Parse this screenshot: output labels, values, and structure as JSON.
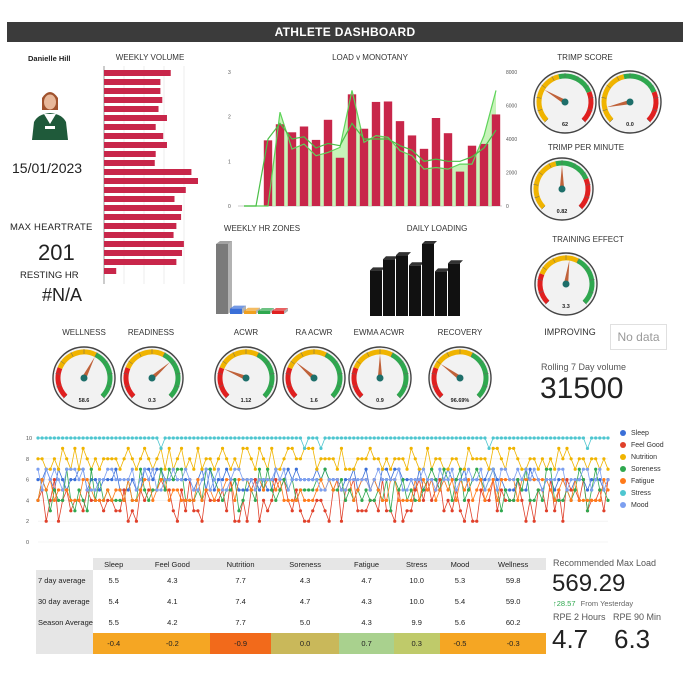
{
  "header": {
    "title": "ATHLETE DASHBOARD"
  },
  "athlete": {
    "name": "Danielle Hill",
    "date": "15/01/2023",
    "max_hr_label": "MAX HEARTRATE",
    "max_hr_value": "201",
    "resting_hr_label": "RESTING HR",
    "resting_hr_value": "#N/A"
  },
  "weekly_volume": {
    "title": "WEEKLY VOLUME",
    "values": [
      0.71,
      0.6,
      0.6,
      0.62,
      0.58,
      0.67,
      0.55,
      0.63,
      0.67,
      0.55,
      0.54,
      0.93,
      1.0,
      0.87,
      0.75,
      0.83,
      0.82,
      0.77,
      0.74,
      0.85,
      0.83,
      0.77,
      0.13
    ]
  },
  "load_monotany": {
    "title": "LOAD v MONOTANY",
    "left_ticks": [
      "3",
      "2",
      "1",
      "0"
    ],
    "right_ticks": [
      "8000",
      "6000",
      "4000",
      "2000",
      "0"
    ],
    "chart_data": {
      "type": "bar",
      "title": "LOAD v MONOTANY",
      "ylim": [
        0,
        3
      ],
      "y2lim": [
        0,
        8000
      ],
      "bars": [
        0,
        0,
        1.47,
        1.83,
        1.65,
        1.78,
        1.48,
        1.93,
        1.08,
        2.5,
        1.73,
        2.33,
        2.34,
        1.9,
        1.58,
        1.28,
        1.97,
        1.63,
        0.77,
        1.35,
        1.39,
        2.05
      ],
      "monotony_line": [
        0,
        0,
        0,
        5600,
        3400,
        3700,
        3000,
        3200,
        3500,
        6900,
        3800,
        4200,
        4100,
        3300,
        3000,
        2200,
        2300,
        2200,
        2500,
        2500,
        4200,
        6900
      ],
      "load_line": [
        0,
        0,
        1.5,
        1.85,
        1.5,
        1.55,
        1.3,
        1.4,
        1.35,
        1.85,
        1.5,
        1.5,
        1.5,
        1.35,
        1.25,
        1.0,
        1.05,
        1.0,
        1.0,
        1.1,
        1.3,
        1.7
      ]
    }
  },
  "hr_zones": {
    "title": "WEEKLY HR ZONES",
    "chart_data": {
      "type": "bar",
      "values": [
        65,
        5,
        3,
        2,
        1
      ],
      "colors": [
        "#7a7a7a",
        "#3a6fd8",
        "#f0a020",
        "#2fa84f",
        "#e02020"
      ]
    }
  },
  "daily_loading": {
    "title": "DAILY LOADING",
    "chart_data": {
      "type": "bar",
      "values": [
        45,
        56,
        60,
        50,
        71,
        44,
        52
      ]
    }
  },
  "gauges": {
    "trimp_score": {
      "title": "TRIMP SCORE",
      "value": "62",
      "fraction": 0.28,
      "type": "low"
    },
    "trimp_score_2": {
      "value": "0.0",
      "fraction": 0.12,
      "type": "low"
    },
    "trimp_per_minute": {
      "title": "TRIMP PER MINUTE",
      "value": "0.82",
      "fraction": 0.5,
      "type": "low"
    },
    "training_effect": {
      "title": "TRAINING EFFECT",
      "value": "3.3",
      "fraction": 0.53,
      "type": "high"
    },
    "training_effect_text": "IMPROVING",
    "no_data": "No data",
    "wellness": {
      "title": "WELLNESS",
      "value": "58.6",
      "fraction": 0.6,
      "type": "high"
    },
    "readiness": {
      "title": "READINESS",
      "value": "0.3",
      "fraction": 0.68,
      "type": "high"
    },
    "acwr": {
      "title": "ACWR",
      "value": "1.12",
      "fraction": 0.25,
      "type": "high"
    },
    "ra_acwr": {
      "title": "RA ACWR",
      "value": "1.6",
      "fraction": 0.32,
      "type": "high"
    },
    "ewma_acwr": {
      "title": "EWMA ACWR",
      "value": "0.9",
      "fraction": 0.5,
      "type": "high"
    },
    "recovery": {
      "title": "RECOVERY",
      "value": "96.69%",
      "fraction": 0.3,
      "type": "high"
    }
  },
  "rolling": {
    "label": "Rolling 7 Day volume",
    "value": "31500"
  },
  "wellness_chart": {
    "y_ticks": [
      "10",
      "8",
      "6",
      "4",
      "2",
      "0"
    ],
    "legend": [
      {
        "name": "Sleep",
        "color": "#3a6fd8"
      },
      {
        "name": "Feel Good",
        "color": "#e0402a"
      },
      {
        "name": "Nutrition",
        "color": "#f0b400"
      },
      {
        "name": "Soreness",
        "color": "#2fa84f"
      },
      {
        "name": "Fatigue",
        "color": "#ff7a1a"
      },
      {
        "name": "Stress",
        "color": "#4ec6d0"
      },
      {
        "name": "Mood",
        "color": "#7c9ff0"
      }
    ],
    "chart_data": {
      "type": "line",
      "ylim": [
        0,
        10
      ],
      "series_names": [
        "Sleep",
        "Feel Good",
        "Nutrition",
        "Soreness",
        "Fatigue",
        "Stress",
        "Mood"
      ],
      "points_per_series": 140
    }
  },
  "stats_table": {
    "columns": [
      "Sleep",
      "Feel Good",
      "Nutrition",
      "Soreness",
      "Fatigue",
      "Stress",
      "Mood",
      "Wellness"
    ],
    "rows": [
      {
        "label": "7 day average",
        "values": [
          "5.5",
          "4.3",
          "7.7",
          "4.3",
          "4.7",
          "10.0",
          "5.3",
          "59.8"
        ]
      },
      {
        "label": "30 day average",
        "values": [
          "5.4",
          "4.1",
          "7.4",
          "4.7",
          "4.3",
          "10.0",
          "5.4",
          "59.0"
        ]
      },
      {
        "label": "Season Average",
        "values": [
          "5.5",
          "4.2",
          "7.7",
          "5.0",
          "4.3",
          "9.9",
          "5.6",
          "60.2"
        ]
      }
    ],
    "diff": {
      "values": [
        "-0.4",
        "-0.2",
        "-0.9",
        "0.0",
        "0.7",
        "0.3",
        "-0.5",
        "-0.3"
      ],
      "colors": [
        "#f5a623",
        "#f5a623",
        "#f26a1b",
        "#c9b85a",
        "#a9d18e",
        "#bfca6a",
        "#f5a623",
        "#f5a623"
      ]
    }
  },
  "recommended": {
    "label": "Recommended Max Load",
    "value": "569.29",
    "change": "28.57",
    "change_label": "From Yesterday",
    "rpe2_label": "RPE 2 Hours",
    "rpe90_label": "RPE 90 Min",
    "rpe2_value": "4.7",
    "rpe90_value": "6.3"
  }
}
